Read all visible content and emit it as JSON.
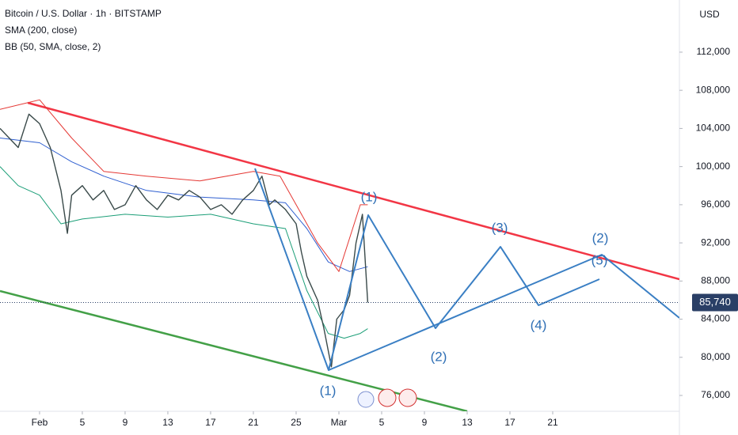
{
  "chart_data": {
    "type": "line",
    "title": "Bitcoin / U.S. Dollar · 1h · BITSTAMP",
    "indicators": [
      "SMA (200, close)",
      "BB (50, SMA, close, 2)"
    ],
    "currency": "USD",
    "last_price": {
      "value": 85740,
      "label": "85,740"
    },
    "xlim": [
      -3.7,
      59.85
    ],
    "ylim": [
      74340,
      117470
    ],
    "xticks": [
      {
        "value": 0,
        "label": "Feb"
      },
      {
        "value": 4,
        "label": "5"
      },
      {
        "value": 8,
        "label": "9"
      },
      {
        "value": 12,
        "label": "13"
      },
      {
        "value": 16,
        "label": "17"
      },
      {
        "value": 20,
        "label": "21"
      },
      {
        "value": 24,
        "label": "25"
      },
      {
        "value": 28,
        "label": "Mar"
      },
      {
        "value": 32,
        "label": "5"
      },
      {
        "value": 36,
        "label": "9"
      },
      {
        "value": 40,
        "label": "13"
      },
      {
        "value": 44,
        "label": "17"
      },
      {
        "value": 48,
        "label": "21"
      }
    ],
    "yticks": [
      {
        "value": 76000,
        "label": "76,000"
      },
      {
        "value": 80000,
        "label": "80,000"
      },
      {
        "value": 84000,
        "label": "84,000"
      },
      {
        "value": 88000,
        "label": "88,000"
      },
      {
        "value": 92000,
        "label": "92,000"
      },
      {
        "value": 96000,
        "label": "96,000"
      },
      {
        "value": 100000,
        "label": "100,000"
      },
      {
        "value": 104000,
        "label": "104,000"
      },
      {
        "value": 108000,
        "label": "108,000"
      },
      {
        "value": 112000,
        "label": "112,000"
      }
    ],
    "series": [
      {
        "color": "#3a4a4a",
        "x": [
          -3.7,
          -2,
          -1,
          0,
          1,
          2,
          2.6,
          3,
          4,
          5,
          6,
          7,
          8,
          9,
          10,
          11,
          12,
          13,
          14,
          15,
          16,
          17,
          18,
          19,
          20,
          20.8,
          21.5,
          22,
          23,
          24,
          24.5,
          25,
          26,
          26.6,
          27.3,
          27.8,
          28.5,
          29,
          29.6,
          30.2,
          30.7
        ],
        "values": [
          104000,
          102000,
          105500,
          104500,
          102000,
          97500,
          93000,
          97000,
          98000,
          96500,
          97500,
          95500,
          96000,
          98000,
          96500,
          95500,
          97000,
          96500,
          97500,
          96800,
          95500,
          96000,
          95000,
          96500,
          97500,
          99000,
          96000,
          96500,
          95500,
          94000,
          91000,
          88500,
          86000,
          83000,
          79000,
          84000,
          85000,
          86500,
          92000,
          95000,
          85740
        ]
      },
      {
        "color": "#2f5fd0",
        "x": [
          -3.7,
          0,
          3,
          6,
          10,
          15,
          20,
          23,
          25,
          27,
          29,
          30.7
        ],
        "values": [
          103000,
          102500,
          100500,
          99000,
          97500,
          96800,
          96500,
          96200,
          93500,
          90000,
          89000,
          89500
        ]
      },
      {
        "color": "#e53935",
        "x": [
          -3.7,
          0,
          3,
          6,
          10,
          15,
          20,
          22.5,
          24,
          26,
          28,
          30,
          30.7
        ],
        "values": [
          106000,
          107000,
          103000,
          99500,
          99000,
          98500,
          99500,
          99000,
          96000,
          92000,
          89000,
          96000,
          96000
        ]
      },
      {
        "color": "#1b9e77",
        "x": [
          -3.7,
          -2,
          0,
          2,
          4,
          8,
          12,
          16,
          20,
          23,
          25,
          27,
          28.5,
          30,
          30.7
        ],
        "values": [
          100000,
          98000,
          97000,
          94000,
          94500,
          95000,
          94700,
          95000,
          94000,
          93500,
          87000,
          82500,
          82000,
          82500,
          83000
        ]
      }
    ],
    "trendlines": [
      {
        "color": "#f23645",
        "x": [
          -1.1,
          59.85
        ],
        "values": [
          106690,
          88193
        ]
      },
      {
        "color": "#43a047",
        "x": [
          -3.7,
          40
        ],
        "values": [
          86950,
          74340
        ]
      }
    ],
    "waves": [
      {
        "color": "#3a7fc4",
        "x": [
          20.15,
          27.04,
          30.74,
          37.04,
          43.11,
          46.67,
          52.37
        ],
        "values": [
          99806,
          78654,
          94912,
          83050,
          91594,
          85456,
          88193
        ]
      },
      {
        "color": "#3a7fc4",
        "x": [
          27.04,
          52.59,
          59.85
        ],
        "values": [
          78654,
          90765,
          84128
        ]
      }
    ],
    "annotations": [
      "(1)",
      "(1)",
      "(2)",
      "(3)",
      "(4)",
      "(5)",
      "(2)"
    ]
  }
}
